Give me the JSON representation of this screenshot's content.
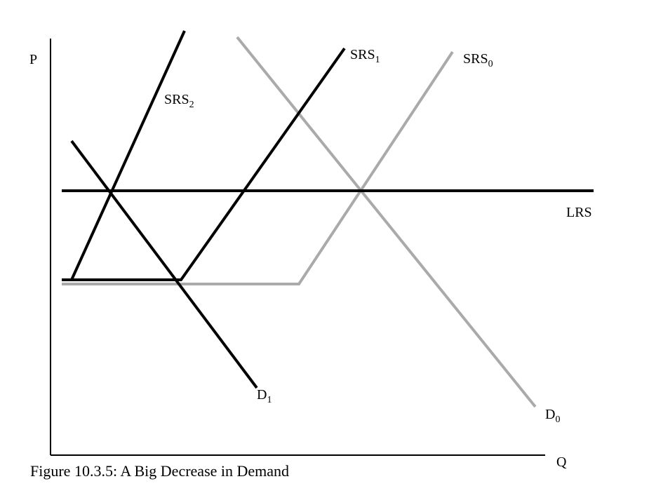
{
  "axes": {
    "y_label": "P",
    "x_label": "Q"
  },
  "curves": {
    "lrs": {
      "label": "LRS"
    },
    "srs0": {
      "base": "SRS",
      "sub": "0"
    },
    "srs1": {
      "base": "SRS",
      "sub": "1"
    },
    "srs2": {
      "base": "SRS",
      "sub": "2"
    },
    "d0": {
      "base": "D",
      "sub": "0"
    },
    "d1": {
      "base": "D",
      "sub": "1"
    }
  },
  "colors": {
    "current": "#000000",
    "initial": "#aaaaaa"
  },
  "caption": "Figure 10.3.5: A Big Decrease in Demand"
}
